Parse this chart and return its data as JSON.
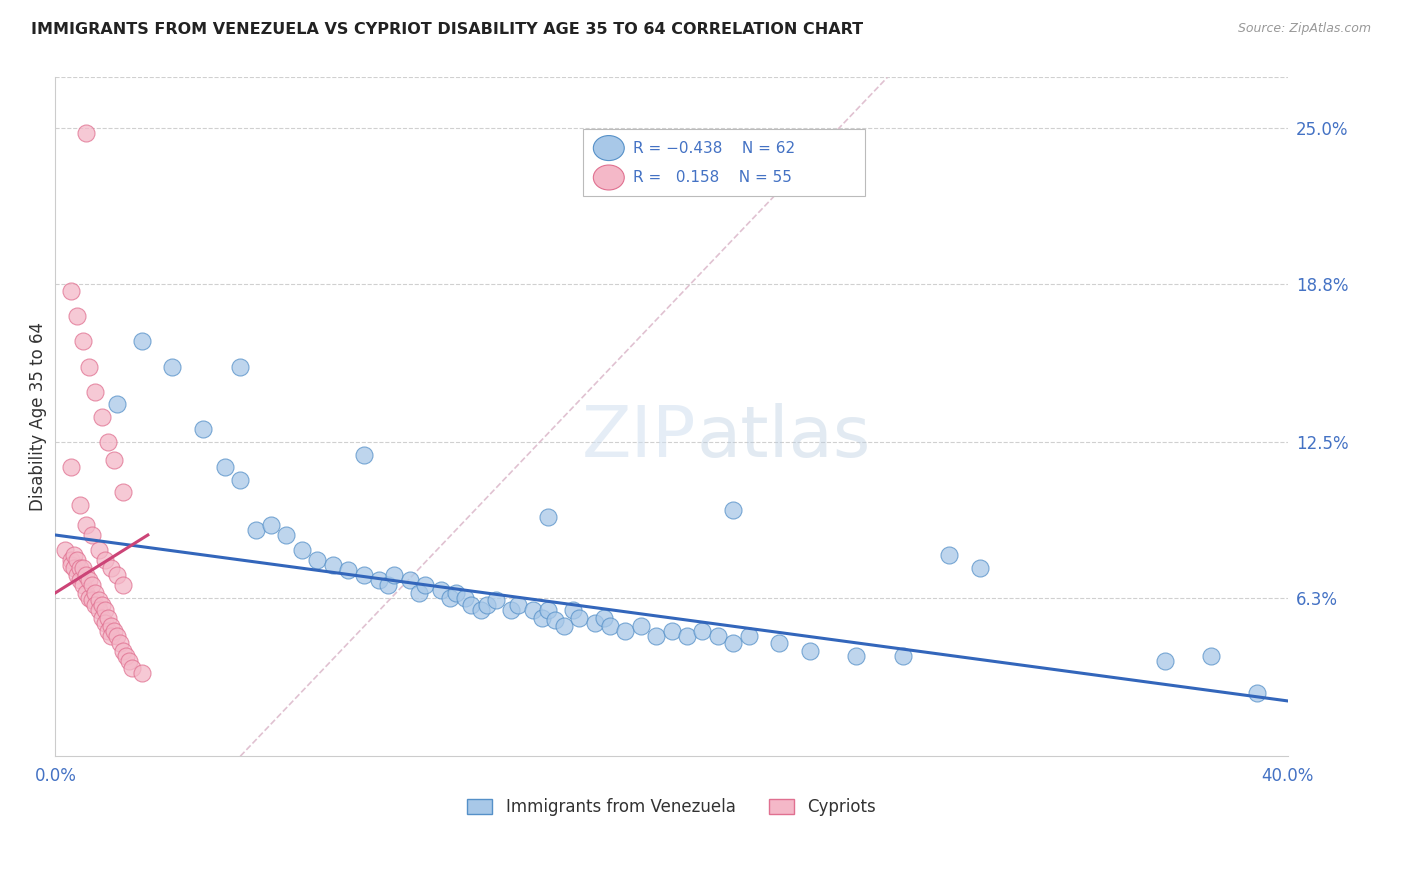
{
  "title": "IMMIGRANTS FROM VENEZUELA VS CYPRIOT DISABILITY AGE 35 TO 64 CORRELATION CHART",
  "source": "Source: ZipAtlas.com",
  "ylabel": "Disability Age 35 to 64",
  "xlim": [
    0.0,
    0.4
  ],
  "ylim": [
    0.0,
    0.27
  ],
  "right_yticks": [
    0.0,
    0.063,
    0.125,
    0.188,
    0.25
  ],
  "right_ytick_labels": [
    "",
    "6.3%",
    "12.5%",
    "18.8%",
    "25.0%"
  ],
  "blue_color": "#a8c8e8",
  "pink_color": "#f4b8c8",
  "blue_edge_color": "#5590c8",
  "pink_edge_color": "#e07090",
  "blue_line_color": "#3366bb",
  "pink_line_color": "#cc4477",
  "right_label_color": "#4472c4",
  "background_color": "#ffffff",
  "blue_scatter_x": [
    0.02,
    0.028,
    0.038,
    0.048,
    0.055,
    0.06,
    0.065,
    0.07,
    0.075,
    0.08,
    0.085,
    0.09,
    0.095,
    0.1,
    0.105,
    0.108,
    0.11,
    0.115,
    0.118,
    0.12,
    0.125,
    0.128,
    0.13,
    0.133,
    0.135,
    0.138,
    0.14,
    0.143,
    0.148,
    0.15,
    0.155,
    0.158,
    0.16,
    0.162,
    0.165,
    0.168,
    0.17,
    0.175,
    0.178,
    0.18,
    0.185,
    0.19,
    0.195,
    0.2,
    0.205,
    0.21,
    0.215,
    0.22,
    0.225,
    0.235,
    0.245,
    0.26,
    0.275,
    0.3,
    0.06,
    0.1,
    0.16,
    0.22,
    0.36,
    0.375,
    0.39,
    0.29
  ],
  "blue_scatter_y": [
    0.14,
    0.165,
    0.155,
    0.13,
    0.115,
    0.11,
    0.09,
    0.092,
    0.088,
    0.082,
    0.078,
    0.076,
    0.074,
    0.072,
    0.07,
    0.068,
    0.072,
    0.07,
    0.065,
    0.068,
    0.066,
    0.063,
    0.065,
    0.063,
    0.06,
    0.058,
    0.06,
    0.062,
    0.058,
    0.06,
    0.058,
    0.055,
    0.058,
    0.054,
    0.052,
    0.058,
    0.055,
    0.053,
    0.055,
    0.052,
    0.05,
    0.052,
    0.048,
    0.05,
    0.048,
    0.05,
    0.048,
    0.045,
    0.048,
    0.045,
    0.042,
    0.04,
    0.04,
    0.075,
    0.155,
    0.12,
    0.095,
    0.098,
    0.038,
    0.04,
    0.025,
    0.08
  ],
  "pink_scatter_x": [
    0.003,
    0.005,
    0.005,
    0.006,
    0.006,
    0.007,
    0.007,
    0.008,
    0.008,
    0.009,
    0.009,
    0.01,
    0.01,
    0.011,
    0.011,
    0.012,
    0.012,
    0.013,
    0.013,
    0.014,
    0.014,
    0.015,
    0.015,
    0.016,
    0.016,
    0.017,
    0.017,
    0.018,
    0.018,
    0.019,
    0.02,
    0.021,
    0.022,
    0.023,
    0.024,
    0.025,
    0.005,
    0.008,
    0.01,
    0.012,
    0.014,
    0.016,
    0.018,
    0.02,
    0.022,
    0.005,
    0.007,
    0.009,
    0.011,
    0.013,
    0.015,
    0.017,
    0.019,
    0.022,
    0.028
  ],
  "pink_scatter_y": [
    0.082,
    0.078,
    0.076,
    0.08,
    0.075,
    0.078,
    0.072,
    0.075,
    0.07,
    0.075,
    0.068,
    0.072,
    0.065,
    0.07,
    0.063,
    0.068,
    0.062,
    0.065,
    0.06,
    0.062,
    0.058,
    0.06,
    0.055,
    0.058,
    0.053,
    0.055,
    0.05,
    0.052,
    0.048,
    0.05,
    0.048,
    0.045,
    0.042,
    0.04,
    0.038,
    0.035,
    0.115,
    0.1,
    0.092,
    0.088,
    0.082,
    0.078,
    0.075,
    0.072,
    0.068,
    0.185,
    0.175,
    0.165,
    0.155,
    0.145,
    0.135,
    0.125,
    0.118,
    0.105,
    0.033
  ],
  "pink_outlier_x": [
    0.01
  ],
  "pink_outlier_y": [
    0.248
  ],
  "blue_trendline_x": [
    0.0,
    0.4
  ],
  "blue_trendline_y": [
    0.088,
    0.022
  ],
  "pink_trendline_x": [
    0.0,
    0.03
  ],
  "pink_trendline_y": [
    0.065,
    0.088
  ],
  "diag_line_x": [
    0.06,
    0.27
  ],
  "diag_line_y": [
    0.0,
    0.27
  ],
  "legend_blue_label": "Immigrants from Venezuela",
  "legend_pink_label": "Cypriots"
}
